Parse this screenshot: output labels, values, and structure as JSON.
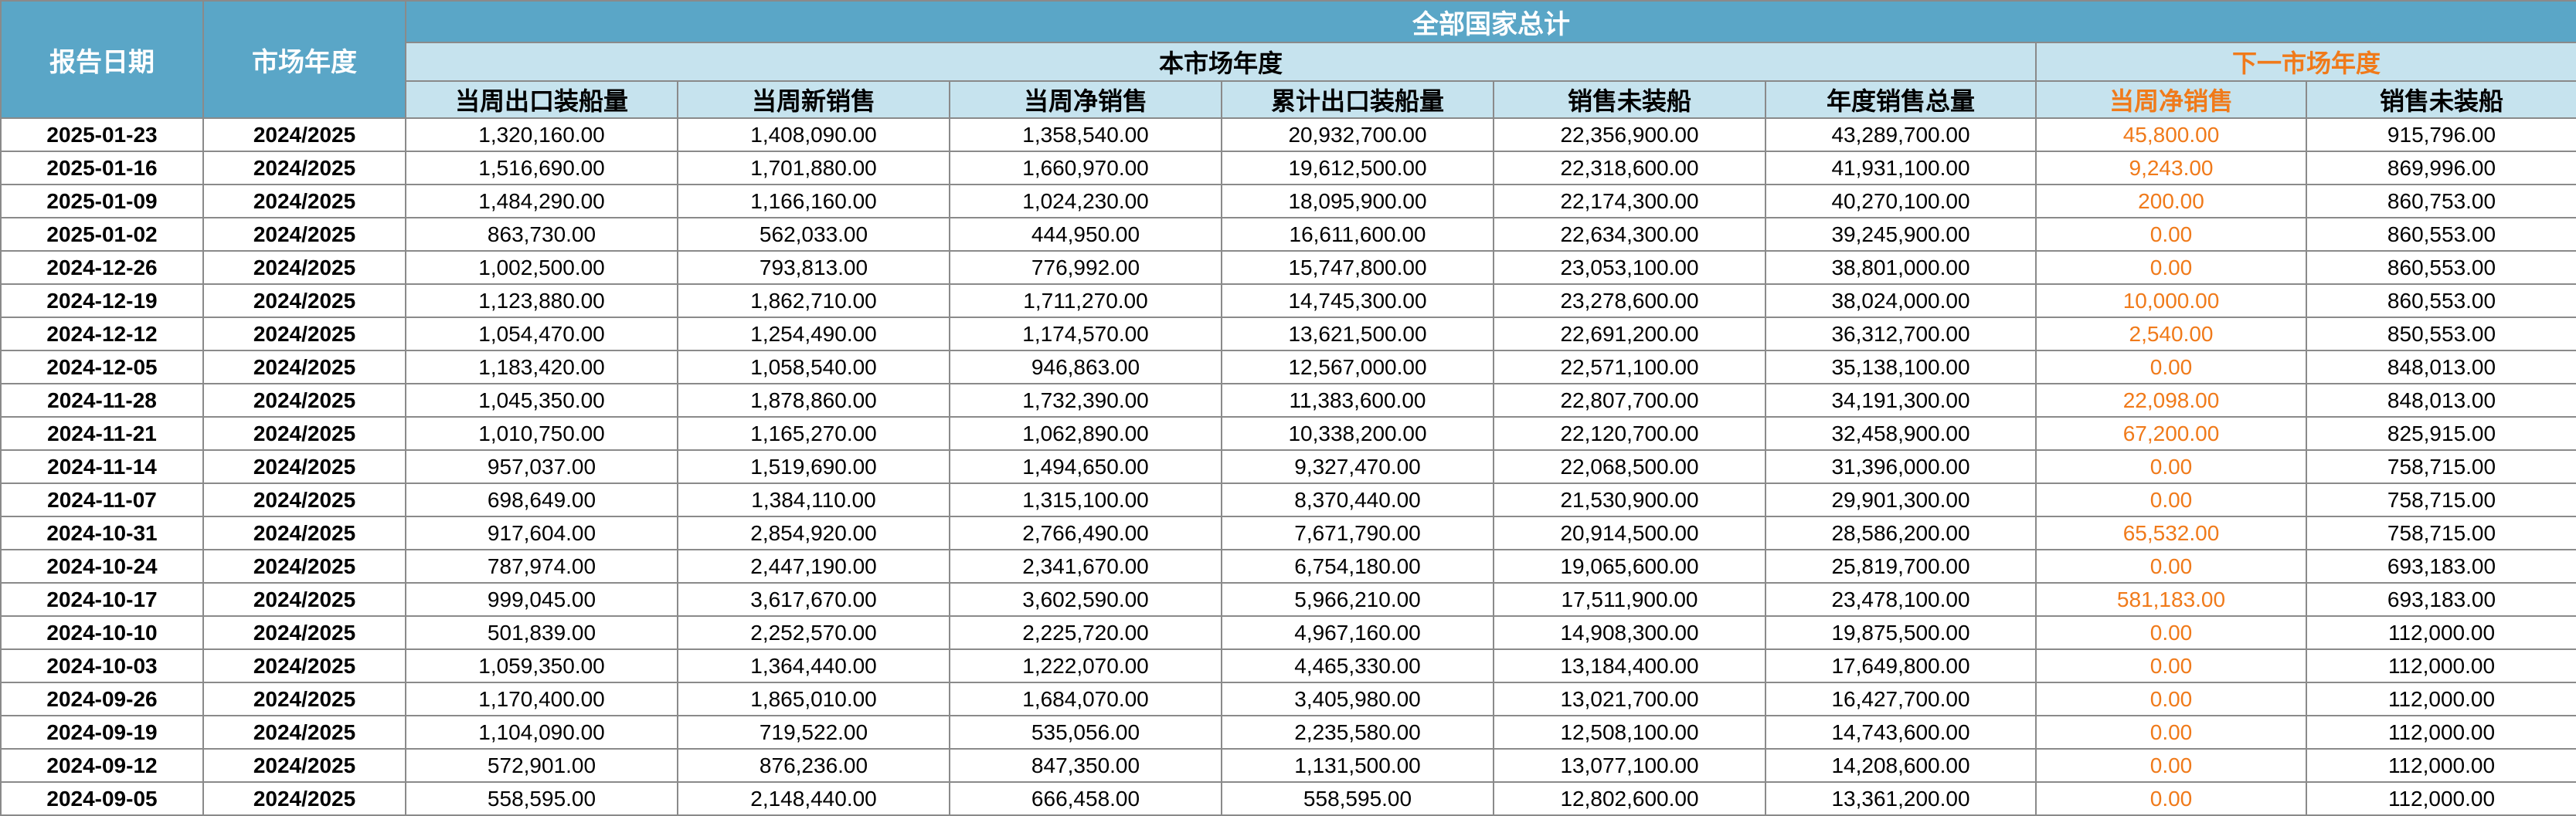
{
  "header": {
    "report_date": "报告日期",
    "market_year": "市场年度",
    "all_countries_total": "全部国家总计",
    "current_market_year": "本市场年度",
    "next_market_year": "下一市场年度"
  },
  "columns": [
    "当周出口装船量",
    "当周新销售",
    "当周净销售",
    "累计出口装船量",
    "销售未装船",
    "年度销售总量",
    "当周净销售",
    "销售未装船"
  ],
  "colors": {
    "header_dark": "#5aa6c7",
    "header_light": "#c6e3ee",
    "accent_orange": "#f07a1a"
  },
  "rows": [
    {
      "date": "2025-01-23",
      "year": "2024/2025",
      "c0": "1,320,160.00",
      "c1": "1,408,090.00",
      "c2": "1,358,540.00",
      "c3": "20,932,700.00",
      "c4": "22,356,900.00",
      "c5": "43,289,700.00",
      "c6": "45,800.00",
      "c7": "915,796.00"
    },
    {
      "date": "2025-01-16",
      "year": "2024/2025",
      "c0": "1,516,690.00",
      "c1": "1,701,880.00",
      "c2": "1,660,970.00",
      "c3": "19,612,500.00",
      "c4": "22,318,600.00",
      "c5": "41,931,100.00",
      "c6": "9,243.00",
      "c7": "869,996.00"
    },
    {
      "date": "2025-01-09",
      "year": "2024/2025",
      "c0": "1,484,290.00",
      "c1": "1,166,160.00",
      "c2": "1,024,230.00",
      "c3": "18,095,900.00",
      "c4": "22,174,300.00",
      "c5": "40,270,100.00",
      "c6": "200.00",
      "c7": "860,753.00"
    },
    {
      "date": "2025-01-02",
      "year": "2024/2025",
      "c0": "863,730.00",
      "c1": "562,033.00",
      "c2": "444,950.00",
      "c3": "16,611,600.00",
      "c4": "22,634,300.00",
      "c5": "39,245,900.00",
      "c6": "0.00",
      "c7": "860,553.00"
    },
    {
      "date": "2024-12-26",
      "year": "2024/2025",
      "c0": "1,002,500.00",
      "c1": "793,813.00",
      "c2": "776,992.00",
      "c3": "15,747,800.00",
      "c4": "23,053,100.00",
      "c5": "38,801,000.00",
      "c6": "0.00",
      "c7": "860,553.00"
    },
    {
      "date": "2024-12-19",
      "year": "2024/2025",
      "c0": "1,123,880.00",
      "c1": "1,862,710.00",
      "c2": "1,711,270.00",
      "c3": "14,745,300.00",
      "c4": "23,278,600.00",
      "c5": "38,024,000.00",
      "c6": "10,000.00",
      "c7": "860,553.00"
    },
    {
      "date": "2024-12-12",
      "year": "2024/2025",
      "c0": "1,054,470.00",
      "c1": "1,254,490.00",
      "c2": "1,174,570.00",
      "c3": "13,621,500.00",
      "c4": "22,691,200.00",
      "c5": "36,312,700.00",
      "c6": "2,540.00",
      "c7": "850,553.00"
    },
    {
      "date": "2024-12-05",
      "year": "2024/2025",
      "c0": "1,183,420.00",
      "c1": "1,058,540.00",
      "c2": "946,863.00",
      "c3": "12,567,000.00",
      "c4": "22,571,100.00",
      "c5": "35,138,100.00",
      "c6": "0.00",
      "c7": "848,013.00"
    },
    {
      "date": "2024-11-28",
      "year": "2024/2025",
      "c0": "1,045,350.00",
      "c1": "1,878,860.00",
      "c2": "1,732,390.00",
      "c3": "11,383,600.00",
      "c4": "22,807,700.00",
      "c5": "34,191,300.00",
      "c6": "22,098.00",
      "c7": "848,013.00"
    },
    {
      "date": "2024-11-21",
      "year": "2024/2025",
      "c0": "1,010,750.00",
      "c1": "1,165,270.00",
      "c2": "1,062,890.00",
      "c3": "10,338,200.00",
      "c4": "22,120,700.00",
      "c5": "32,458,900.00",
      "c6": "67,200.00",
      "c7": "825,915.00"
    },
    {
      "date": "2024-11-14",
      "year": "2024/2025",
      "c0": "957,037.00",
      "c1": "1,519,690.00",
      "c2": "1,494,650.00",
      "c3": "9,327,470.00",
      "c4": "22,068,500.00",
      "c5": "31,396,000.00",
      "c6": "0.00",
      "c7": "758,715.00"
    },
    {
      "date": "2024-11-07",
      "year": "2024/2025",
      "c0": "698,649.00",
      "c1": "1,384,110.00",
      "c2": "1,315,100.00",
      "c3": "8,370,440.00",
      "c4": "21,530,900.00",
      "c5": "29,901,300.00",
      "c6": "0.00",
      "c7": "758,715.00"
    },
    {
      "date": "2024-10-31",
      "year": "2024/2025",
      "c0": "917,604.00",
      "c1": "2,854,920.00",
      "c2": "2,766,490.00",
      "c3": "7,671,790.00",
      "c4": "20,914,500.00",
      "c5": "28,586,200.00",
      "c6": "65,532.00",
      "c7": "758,715.00"
    },
    {
      "date": "2024-10-24",
      "year": "2024/2025",
      "c0": "787,974.00",
      "c1": "2,447,190.00",
      "c2": "2,341,670.00",
      "c3": "6,754,180.00",
      "c4": "19,065,600.00",
      "c5": "25,819,700.00",
      "c6": "0.00",
      "c7": "693,183.00"
    },
    {
      "date": "2024-10-17",
      "year": "2024/2025",
      "c0": "999,045.00",
      "c1": "3,617,670.00",
      "c2": "3,602,590.00",
      "c3": "5,966,210.00",
      "c4": "17,511,900.00",
      "c5": "23,478,100.00",
      "c6": "581,183.00",
      "c7": "693,183.00"
    },
    {
      "date": "2024-10-10",
      "year": "2024/2025",
      "c0": "501,839.00",
      "c1": "2,252,570.00",
      "c2": "2,225,720.00",
      "c3": "4,967,160.00",
      "c4": "14,908,300.00",
      "c5": "19,875,500.00",
      "c6": "0.00",
      "c7": "112,000.00"
    },
    {
      "date": "2024-10-03",
      "year": "2024/2025",
      "c0": "1,059,350.00",
      "c1": "1,364,440.00",
      "c2": "1,222,070.00",
      "c3": "4,465,330.00",
      "c4": "13,184,400.00",
      "c5": "17,649,800.00",
      "c6": "0.00",
      "c7": "112,000.00"
    },
    {
      "date": "2024-09-26",
      "year": "2024/2025",
      "c0": "1,170,400.00",
      "c1": "1,865,010.00",
      "c2": "1,684,070.00",
      "c3": "3,405,980.00",
      "c4": "13,021,700.00",
      "c5": "16,427,700.00",
      "c6": "0.00",
      "c7": "112,000.00"
    },
    {
      "date": "2024-09-19",
      "year": "2024/2025",
      "c0": "1,104,090.00",
      "c1": "719,522.00",
      "c2": "535,056.00",
      "c3": "2,235,580.00",
      "c4": "12,508,100.00",
      "c5": "14,743,600.00",
      "c6": "0.00",
      "c7": "112,000.00"
    },
    {
      "date": "2024-09-12",
      "year": "2024/2025",
      "c0": "572,901.00",
      "c1": "876,236.00",
      "c2": "847,350.00",
      "c3": "1,131,500.00",
      "c4": "13,077,100.00",
      "c5": "14,208,600.00",
      "c6": "0.00",
      "c7": "112,000.00"
    },
    {
      "date": "2024-09-05",
      "year": "2024/2025",
      "c0": "558,595.00",
      "c1": "2,148,440.00",
      "c2": "666,458.00",
      "c3": "558,595.00",
      "c4": "12,802,600.00",
      "c5": "13,361,200.00",
      "c6": "0.00",
      "c7": "112,000.00"
    }
  ]
}
